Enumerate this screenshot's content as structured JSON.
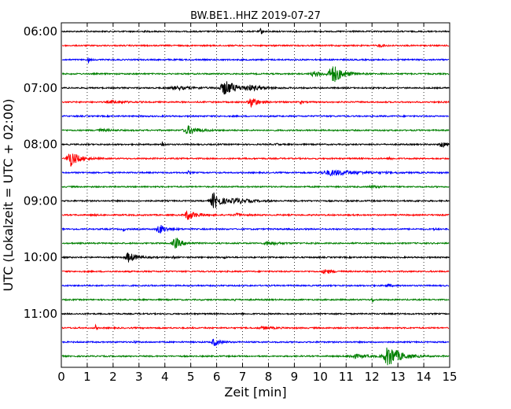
{
  "chart_data": {
    "type": "line",
    "title": "BW.BE1..HHZ 2019-07-27",
    "xlabel": "Zeit  [min]",
    "ylabel": "UTC (Lokalzeit = UTC + 02:00)",
    "xlim": [
      0,
      15
    ],
    "x_ticks": [
      "0",
      "1",
      "2",
      "3",
      "4",
      "5",
      "6",
      "7",
      "8",
      "9",
      "10",
      "11",
      "12",
      "13",
      "14",
      "15"
    ],
    "y_ticks": [
      "06:00",
      "07:00",
      "08:00",
      "09:00",
      "10:00",
      "11:00"
    ],
    "grid": "vertical dotted",
    "trace_colors": [
      "#000000",
      "#ff0000",
      "#0000ff",
      "#008000"
    ],
    "traces": [
      {
        "start": "06:00",
        "events": [
          {
            "t": 7.7,
            "amp": 0.35,
            "w": 0.05
          },
          {
            "t": 3.2,
            "amp": 0.15,
            "w": 0.03
          }
        ]
      },
      {
        "start": "06:15",
        "events": [
          {
            "t": 12.3,
            "amp": 0.1,
            "w": 0.2
          }
        ]
      },
      {
        "start": "06:30",
        "events": [
          {
            "t": 1.05,
            "amp": 0.45,
            "w": 0.03
          }
        ]
      },
      {
        "start": "06:45",
        "events": [
          {
            "t": 10.5,
            "amp": 0.95,
            "w": 0.3
          },
          {
            "t": 9.8,
            "amp": 0.25,
            "w": 0.3
          }
        ]
      },
      {
        "start": "07:00",
        "events": [
          {
            "t": 6.35,
            "amp": 0.75,
            "w": 0.35
          },
          {
            "t": 7.3,
            "amp": 0.2,
            "w": 0.4
          },
          {
            "t": 4.5,
            "amp": 0.15,
            "w": 0.6
          }
        ]
      },
      {
        "start": "07:15",
        "events": [
          {
            "t": 7.35,
            "amp": 0.55,
            "w": 0.2
          },
          {
            "t": 9.25,
            "amp": 0.25,
            "w": 0.04
          },
          {
            "t": 2.0,
            "amp": 0.15,
            "w": 0.3
          }
        ]
      },
      {
        "start": "07:30",
        "events": []
      },
      {
        "start": "07:45",
        "events": [
          {
            "t": 4.9,
            "amp": 0.45,
            "w": 0.3
          },
          {
            "t": 1.5,
            "amp": 0.12,
            "w": 0.3
          }
        ]
      },
      {
        "start": "08:00",
        "events": [
          {
            "t": 3.9,
            "amp": 0.4,
            "w": 0.04
          },
          {
            "t": 14.7,
            "amp": 0.3,
            "w": 0.15
          },
          {
            "t": 8.3,
            "amp": 0.15,
            "w": 0.05
          }
        ]
      },
      {
        "start": "08:15",
        "events": [
          {
            "t": 0.35,
            "amp": 0.85,
            "w": 0.25
          },
          {
            "t": 12.7,
            "amp": 0.25,
            "w": 0.05
          }
        ]
      },
      {
        "start": "08:30",
        "events": [
          {
            "t": 10.5,
            "amp": 0.28,
            "w": 0.8
          },
          {
            "t": 4.9,
            "amp": 0.12,
            "w": 0.05
          }
        ]
      },
      {
        "start": "08:45",
        "events": [
          {
            "t": 12.0,
            "amp": 0.12,
            "w": 0.2
          }
        ]
      },
      {
        "start": "09:00",
        "events": [
          {
            "t": 5.9,
            "amp": 0.85,
            "w": 0.25
          },
          {
            "t": 6.8,
            "amp": 0.25,
            "w": 0.4
          },
          {
            "t": 13.7,
            "amp": 0.2,
            "w": 0.05
          }
        ]
      },
      {
        "start": "09:15",
        "events": [
          {
            "t": 4.9,
            "amp": 0.5,
            "w": 0.25
          },
          {
            "t": 6.8,
            "amp": 0.15,
            "w": 0.2
          },
          {
            "t": 1.2,
            "amp": 0.1,
            "w": 0.05
          }
        ]
      },
      {
        "start": "09:30",
        "events": [
          {
            "t": 3.8,
            "amp": 0.5,
            "w": 0.2
          },
          {
            "t": 2.4,
            "amp": 0.2,
            "w": 0.04
          },
          {
            "t": 14.4,
            "amp": 0.15,
            "w": 0.05
          }
        ]
      },
      {
        "start": "09:45",
        "events": [
          {
            "t": 4.4,
            "amp": 0.6,
            "w": 0.2
          },
          {
            "t": 8.0,
            "amp": 0.2,
            "w": 0.3
          }
        ]
      },
      {
        "start": "10:00",
        "events": [
          {
            "t": 2.6,
            "amp": 0.5,
            "w": 0.25
          },
          {
            "t": 4.3,
            "amp": 0.18,
            "w": 0.05
          },
          {
            "t": 6.3,
            "amp": 0.12,
            "w": 0.05
          }
        ]
      },
      {
        "start": "10:15",
        "events": [
          {
            "t": 10.2,
            "amp": 0.25,
            "w": 0.2
          }
        ]
      },
      {
        "start": "10:30",
        "events": [
          {
            "t": 12.6,
            "amp": 0.15,
            "w": 0.1
          }
        ]
      },
      {
        "start": "10:45",
        "events": [
          {
            "t": 12.0,
            "amp": 0.5,
            "w": 0.03
          },
          {
            "t": 6.7,
            "amp": 0.12,
            "w": 0.05
          }
        ]
      },
      {
        "start": "11:00",
        "events": []
      },
      {
        "start": "11:15",
        "events": [
          {
            "t": 1.3,
            "amp": 0.4,
            "w": 0.04
          },
          {
            "t": 7.8,
            "amp": 0.12,
            "w": 0.3
          }
        ]
      },
      {
        "start": "11:30",
        "events": [
          {
            "t": 5.9,
            "amp": 0.45,
            "w": 0.15
          },
          {
            "t": 2.8,
            "amp": 0.2,
            "w": 0.04
          }
        ]
      },
      {
        "start": "11:45",
        "events": [
          {
            "t": 12.65,
            "amp": 1.1,
            "w": 0.35
          },
          {
            "t": 11.3,
            "amp": 0.2,
            "w": 0.4
          }
        ]
      }
    ]
  }
}
